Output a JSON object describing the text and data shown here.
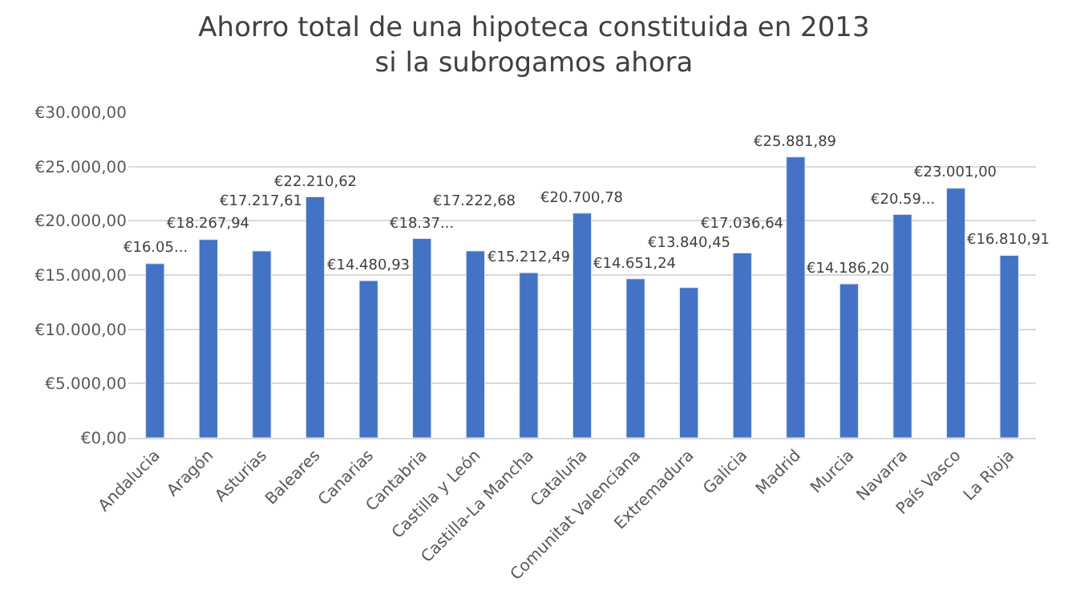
{
  "chart_data": {
    "type": "bar",
    "title": "Ahorro total de una hipoteca constituida en 2013 si la subrogamos ahora",
    "categories": [
      "Andalucia",
      "Aragón",
      "Asturias",
      "Baleares",
      "Canarias",
      "Cantabria",
      "Castilla y León",
      "Castilla-La Mancha",
      "Cataluña",
      "Comunitat Valenciana",
      "Extremadura",
      "Galicia",
      "Madrid",
      "Murcia",
      "Navarra",
      "País Vasco",
      "La Rioja"
    ],
    "values": [
      16050,
      18267.94,
      17217.61,
      22210.62,
      14480.93,
      18370,
      17222.68,
      15212.49,
      20700.78,
      14651.24,
      13840.45,
      17036.64,
      25881.89,
      14186.2,
      20590,
      23001.0,
      16810.91
    ],
    "value_labels": [
      "€16.05...",
      "€18.267,94",
      "€17.217,61",
      "€22.210,62",
      "€14.480,93",
      "€18.37...",
      "€17.222,68",
      "€15.212,49",
      "€20.700,78",
      "€14.651,24",
      "€13.840,45",
      "€17.036,64",
      "€25.881,89",
      "€14.186,20",
      "€20.59...",
      "€23.001,00",
      "€16.810,91"
    ],
    "color": "#4472c4",
    "ylim": [
      0,
      30000
    ],
    "yticks": [
      {
        "value": 0,
        "label": "€0,00"
      },
      {
        "value": 5000,
        "label": "€5.000,00"
      },
      {
        "value": 10000,
        "label": "€10.000,00"
      },
      {
        "value": 15000,
        "label": "€15.000,00"
      },
      {
        "value": 20000,
        "label": "€20.000,00"
      },
      {
        "value": 25000,
        "label": "€25.000,00"
      },
      {
        "value": 30000,
        "label": "€30.000,00"
      }
    ],
    "grid": "y"
  }
}
